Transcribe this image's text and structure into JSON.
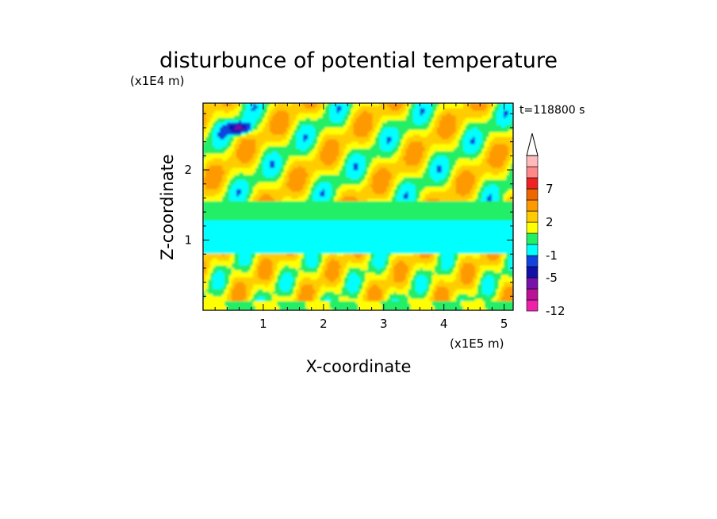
{
  "chart_data": {
    "type": "heatmap",
    "title": "disturbunce of potential temperature",
    "y_scale_label": "(x1E4 m)",
    "x_scale_label": "(x1E5 m)",
    "xlabel": "X-coordinate",
    "ylabel": "Z-coordinate",
    "time_label": "t=118800 s",
    "xlim": [
      0,
      5.15
    ],
    "ylim": [
      0,
      2.95
    ],
    "x_ticks": [
      "1",
      "2",
      "3",
      "4",
      "5"
    ],
    "x_tick_values": [
      1,
      2,
      3,
      4,
      5
    ],
    "y_ticks": [
      "1",
      "2"
    ],
    "y_tick_values": [
      1,
      2
    ],
    "colorbar": {
      "levels": [
        -12,
        -9,
        -7,
        -5,
        -3,
        -1,
        0,
        1,
        2,
        3,
        5,
        7,
        9,
        11
      ],
      "tick_labels": [
        "7",
        "2",
        "-1",
        "-5",
        "-12"
      ],
      "tick_values": [
        7,
        2,
        -1,
        -5,
        -12
      ],
      "colors": [
        "#ee22aa",
        "#bb1199",
        "#7711aa",
        "#1111aa",
        "#1144dd",
        "#00ffff",
        "#22ee66",
        "#ffff00",
        "#ffcc00",
        "#ff9900",
        "#ee6600",
        "#ee2222",
        "#ff8888",
        "#ffbbbb"
      ],
      "extend": "max"
    },
    "data_description": "band structure by height",
    "bands": [
      {
        "z_range": [
          0.0,
          0.15
        ],
        "dominant": "green/yellow"
      },
      {
        "z_range": [
          0.15,
          0.8
        ],
        "dominant": "yellow/orange"
      },
      {
        "z_range": [
          0.8,
          1.3
        ],
        "dominant": "cyan"
      },
      {
        "z_range": [
          1.3,
          1.55
        ],
        "dominant": "green"
      },
      {
        "z_range": [
          1.55,
          2.95
        ],
        "dominant": "yellow/orange with cyan and green cells"
      }
    ]
  },
  "colors": {
    "background": "#ffffff",
    "axis": "#000000"
  }
}
